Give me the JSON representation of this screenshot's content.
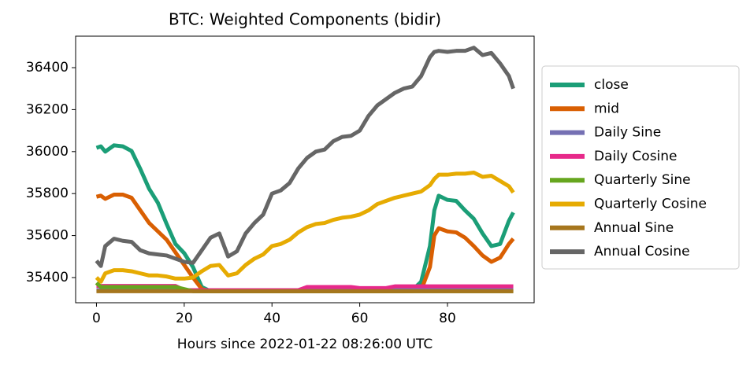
{
  "chart_data": {
    "type": "line",
    "title": "BTC: Weighted Components (bidir)",
    "x_label": "Hours since 2022-01-22 08:26:00 UTC",
    "x": [
      0,
      1,
      2,
      4,
      6,
      8,
      10,
      12,
      14,
      16,
      18,
      20,
      22,
      24,
      26,
      28,
      30,
      32,
      34,
      36,
      38,
      40,
      42,
      44,
      46,
      48,
      50,
      52,
      54,
      56,
      58,
      60,
      62,
      64,
      66,
      68,
      70,
      72,
      74,
      76,
      77,
      78,
      80,
      82,
      84,
      86,
      88,
      90,
      92,
      94,
      95
    ],
    "xlim": [
      -4.75,
      99.75
    ],
    "xticks": [
      0,
      20,
      40,
      60,
      80
    ],
    "ylim": [
      35280,
      36550
    ],
    "yticks": [
      35400,
      35600,
      35800,
      36000,
      36200,
      36400
    ],
    "legend": "outside-right",
    "series": [
      {
        "name": "close",
        "color": "#1b9e77",
        "values": [
          36018,
          36025,
          36000,
          36030,
          36025,
          36003,
          35917,
          35823,
          35756,
          35655,
          35560,
          35516,
          35450,
          35355,
          35335,
          35335,
          35335,
          35335,
          35335,
          35335,
          35335,
          35335,
          35335,
          35335,
          35335,
          35335,
          35335,
          35335,
          35335,
          35335,
          35335,
          35335,
          35335,
          35335,
          35335,
          35335,
          35335,
          35340,
          35380,
          35550,
          35720,
          35790,
          35770,
          35765,
          35720,
          35680,
          35610,
          35550,
          35560,
          35670,
          35710
        ]
      },
      {
        "name": "mid",
        "color": "#d95f02",
        "values": [
          35785,
          35790,
          35775,
          35795,
          35795,
          35780,
          35720,
          35660,
          35620,
          35580,
          35520,
          35460,
          35400,
          35345,
          35335,
          35335,
          35335,
          35335,
          35335,
          35335,
          35335,
          35335,
          35335,
          35335,
          35335,
          35335,
          35335,
          35335,
          35335,
          35335,
          35335,
          35335,
          35335,
          35335,
          35335,
          35335,
          35335,
          35335,
          35340,
          35450,
          35600,
          35635,
          35620,
          35615,
          35590,
          35550,
          35505,
          35475,
          35495,
          35560,
          35585
        ]
      },
      {
        "name": "Daily Sine",
        "color": "#7570b3",
        "values": [
          35340,
          35340,
          35340,
          35340,
          35340,
          35340,
          35340,
          35340,
          35340,
          35340,
          35340,
          35340,
          35340,
          35340,
          35340,
          35340,
          35340,
          35340,
          35340,
          35340,
          35340,
          35340,
          35340,
          35340,
          35340,
          35340,
          35340,
          35340,
          35340,
          35340,
          35340,
          35340,
          35340,
          35340,
          35340,
          35340,
          35340,
          35340,
          35340,
          35340,
          35340,
          35340,
          35340,
          35340,
          35340,
          35340,
          35340,
          35340,
          35340,
          35340,
          35340
        ]
      },
      {
        "name": "Daily Cosine",
        "color": "#e7298a",
        "values": [
          35360,
          35360,
          35360,
          35360,
          35360,
          35360,
          35360,
          35360,
          35360,
          35360,
          35360,
          35340,
          35340,
          35340,
          35340,
          35340,
          35340,
          35340,
          35340,
          35340,
          35340,
          35340,
          35340,
          35340,
          35340,
          35355,
          35355,
          35355,
          35355,
          35355,
          35355,
          35350,
          35350,
          35350,
          35350,
          35358,
          35358,
          35358,
          35358,
          35358,
          35358,
          35358,
          35358,
          35358,
          35358,
          35358,
          35358,
          35358,
          35358,
          35358,
          35358
        ]
      },
      {
        "name": "Quarterly Sine",
        "color": "#66a61e",
        "values": [
          35375,
          35355,
          35355,
          35355,
          35355,
          35355,
          35355,
          35355,
          35355,
          35355,
          35355,
          35345,
          35335,
          35335,
          35335,
          35335,
          35335,
          35335,
          35335,
          35335,
          35335,
          35335,
          35335,
          35335,
          35335,
          35335,
          35335,
          35335,
          35335,
          35335,
          35335,
          35335,
          35335,
          35335,
          35335,
          35335,
          35335,
          35335,
          35335,
          35335,
          35335,
          35335,
          35335,
          35335,
          35335,
          35335,
          35335,
          35335,
          35335,
          35335,
          35335
        ]
      },
      {
        "name": "Quarterly Cosine",
        "color": "#e6ab02",
        "values": [
          35400,
          35380,
          35420,
          35435,
          35435,
          35430,
          35420,
          35410,
          35410,
          35405,
          35395,
          35395,
          35400,
          35430,
          35455,
          35460,
          35410,
          35420,
          35460,
          35490,
          35510,
          35550,
          35560,
          35580,
          35615,
          35640,
          35655,
          35660,
          35675,
          35685,
          35690,
          35700,
          35720,
          35750,
          35765,
          35780,
          35790,
          35800,
          35810,
          35840,
          35870,
          35890,
          35890,
          35895,
          35895,
          35900,
          35880,
          35885,
          35860,
          35835,
          35805
        ]
      },
      {
        "name": "Annual Sine",
        "color": "#a6761d",
        "values": [
          35335,
          35335,
          35335,
          35335,
          35335,
          35335,
          35335,
          35335,
          35335,
          35335,
          35335,
          35335,
          35335,
          35335,
          35335,
          35335,
          35335,
          35335,
          35335,
          35335,
          35335,
          35335,
          35335,
          35335,
          35335,
          35335,
          35335,
          35335,
          35335,
          35335,
          35335,
          35335,
          35335,
          35335,
          35335,
          35335,
          35335,
          35335,
          35335,
          35335,
          35335,
          35335,
          35335,
          35335,
          35335,
          35335,
          35335,
          35335,
          35335,
          35335,
          35335
        ]
      },
      {
        "name": "Annual Cosine",
        "color": "#666666",
        "values": [
          35480,
          35455,
          35550,
          35585,
          35575,
          35570,
          35530,
          35515,
          35510,
          35505,
          35490,
          35475,
          35470,
          35530,
          35590,
          35610,
          35500,
          35525,
          35610,
          35660,
          35700,
          35800,
          35815,
          35850,
          35920,
          35970,
          36000,
          36010,
          36050,
          36070,
          36075,
          36100,
          36170,
          36220,
          36250,
          36280,
          36300,
          36310,
          36360,
          36450,
          36475,
          36480,
          36475,
          36480,
          36480,
          36495,
          36460,
          36470,
          36420,
          36360,
          36300
        ]
      }
    ]
  }
}
